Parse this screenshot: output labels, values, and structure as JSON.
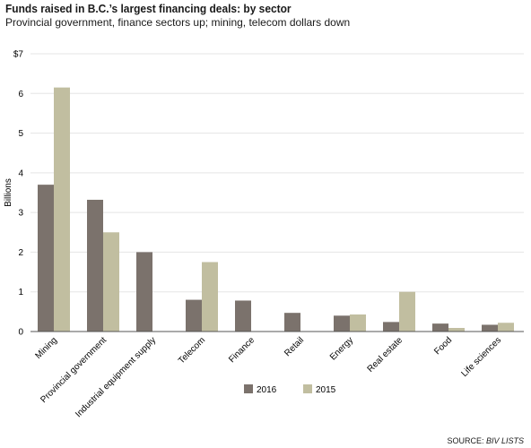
{
  "header": {
    "title": "Funds raised in B.C.’s largest financing deals: by sector",
    "subtitle": "Provincial government, finance sectors up; mining, telecom dollars down"
  },
  "source": {
    "label": "SOURCE:",
    "name": "BIV LISTS"
  },
  "colors": {
    "series_2016": "#7b726c",
    "series_2015": "#c1bea0",
    "axis": "#555555",
    "grid": "#e5e5e5"
  },
  "chart_data": {
    "type": "bar",
    "ylabel": "Billions",
    "ylim": [
      0,
      7
    ],
    "yticks": [
      "0",
      "1",
      "2",
      "3",
      "4",
      "5",
      "6",
      "$7"
    ],
    "legend_position": "bottom-center",
    "categories": [
      "Mining",
      "Provincial government",
      "Industrial equipment supply",
      "Telecom",
      "Finance",
      "Retail",
      "Energy",
      "Real estate",
      "Food",
      "Life sciences"
    ],
    "series": [
      {
        "name": "2016",
        "values": [
          3.7,
          3.32,
          2.0,
          0.8,
          0.78,
          0.47,
          0.4,
          0.24,
          0.2,
          0.17
        ]
      },
      {
        "name": "2015",
        "values": [
          6.15,
          2.5,
          null,
          1.75,
          null,
          null,
          0.43,
          1.0,
          0.09,
          0.22
        ]
      }
    ]
  }
}
